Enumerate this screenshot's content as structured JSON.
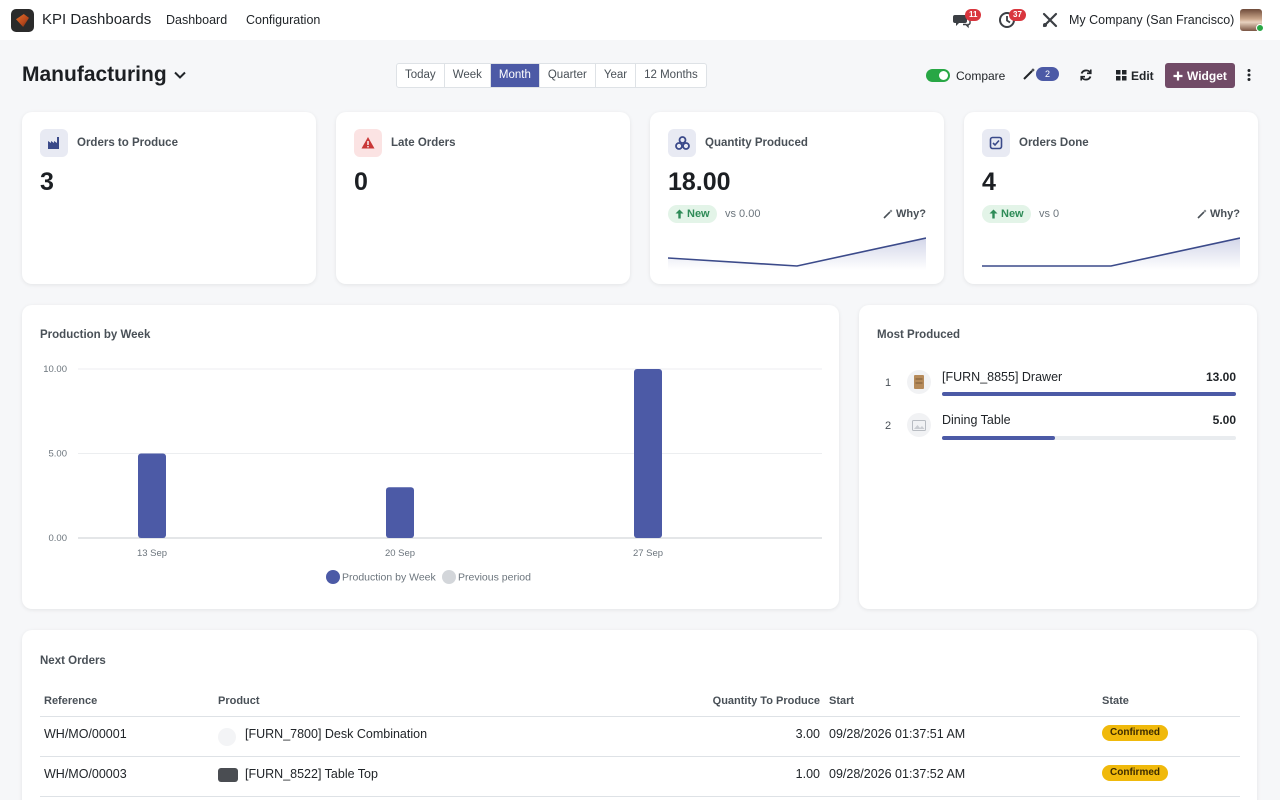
{
  "navbar": {
    "app_name": "KPI Dashboards",
    "menu": [
      "Dashboard",
      "Configuration"
    ],
    "messages_count": "11",
    "activities_count": "37",
    "company": "My Company (San Francisco)"
  },
  "control": {
    "title": "Manufacturing",
    "periods": [
      "Today",
      "Week",
      "Month",
      "Quarter",
      "Year",
      "12 Months"
    ],
    "active_period": "Month",
    "compare_label": "Compare",
    "compare_on": true,
    "insights_count": "2",
    "edit_label": "Edit",
    "widget_label": "Widget"
  },
  "kpis": [
    {
      "title": "Orders to Produce",
      "value": "3",
      "icon": "factory-icon"
    },
    {
      "title": "Late Orders",
      "value": "0",
      "icon": "warning-icon"
    },
    {
      "title": "Quantity Produced",
      "value": "18.00",
      "icon": "cubes-icon",
      "delta": "New",
      "vs": "vs 0.00",
      "why": "Why?"
    },
    {
      "title": "Orders Done",
      "value": "4",
      "icon": "check-square-icon",
      "delta": "New",
      "vs": "vs 0",
      "why": "Why?"
    }
  ],
  "production_chart": {
    "title": "Production by Week",
    "legend": [
      "Production by Week",
      "Previous period"
    ]
  },
  "chart_data": {
    "type": "bar",
    "categories": [
      "13 Sep",
      "20 Sep",
      "27 Sep"
    ],
    "series": [
      {
        "name": "Production by Week",
        "values": [
          5,
          3,
          10
        ],
        "color": "#4c5aa6"
      },
      {
        "name": "Previous period",
        "values": [
          0,
          0,
          0
        ],
        "color": "#d3d6da"
      }
    ],
    "yticks": [
      "0.00",
      "5.00",
      "10.00"
    ],
    "ylim": [
      0,
      10
    ],
    "grid": true,
    "legend_position": "bottom"
  },
  "most_produced": {
    "title": "Most Produced",
    "items": [
      {
        "rank": "1",
        "name": "[FURN_8855] Drawer",
        "value": "13.00",
        "fraction": 1.0
      },
      {
        "rank": "2",
        "name": "Dining Table",
        "value": "5.00",
        "fraction": 0.385
      }
    ]
  },
  "next_orders": {
    "title": "Next Orders",
    "columns": [
      "Reference",
      "Product",
      "Quantity To Produce",
      "Start",
      "State"
    ],
    "rows": [
      {
        "reference": "WH/MO/00001",
        "product": "[FURN_7800] Desk Combination",
        "quantity": "3.00",
        "start": "09/28/2026 01:37:51 AM",
        "state": "Confirmed"
      },
      {
        "reference": "WH/MO/00003",
        "product": "[FURN_8522] Table Top",
        "quantity": "1.00",
        "start": "09/28/2026 01:37:52 AM",
        "state": "Confirmed"
      }
    ]
  },
  "colors": {
    "accent": "#4c5aa6",
    "brand": "#714b67",
    "success": "#28a745",
    "warning_pill": "#f0b90b"
  }
}
